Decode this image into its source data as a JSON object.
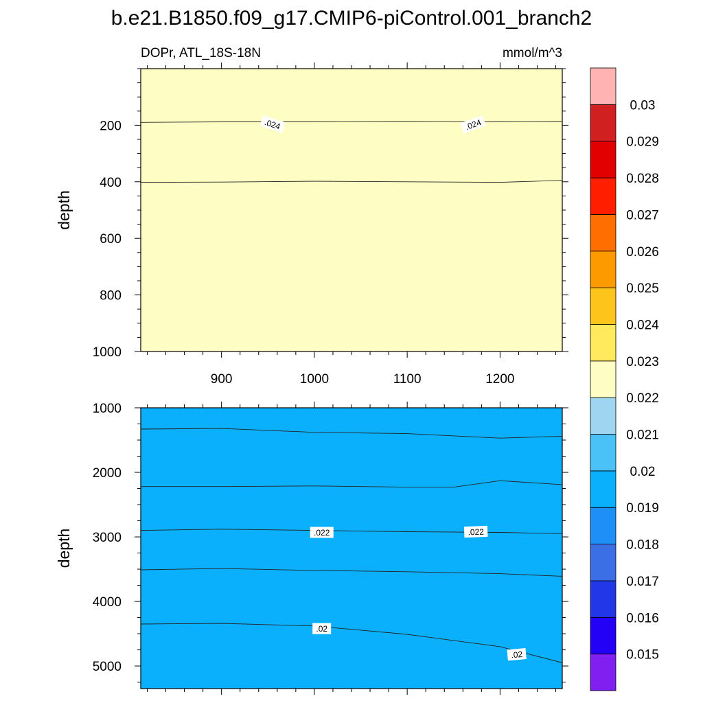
{
  "title": "b.e21.B1850.f09_g17.CMIP6-piControl.001_branch2",
  "chart_data": {
    "type": "contour",
    "left_label": "DOPr, ATL_18S-18N",
    "units": "mmol/m^3",
    "x_ticks": [
      900,
      1000,
      1100,
      1200
    ],
    "xlim": [
      813,
      1267
    ],
    "colorbar": {
      "levels": [
        "0.015",
        "0.016",
        "0.017",
        "0.018",
        "0.019",
        "0.02",
        "0.021",
        "0.022",
        "0.023",
        "0.024",
        "0.025",
        "0.026",
        "0.027",
        "0.028",
        "0.029",
        "0.03"
      ],
      "colors": [
        "#7f1ff0",
        "#2300f6",
        "#2238e8",
        "#3a6fe6",
        "#1e8ff7",
        "#0bb0fc",
        "#4ac2f7",
        "#9fd5ee",
        "#fefec4",
        "#feea5c",
        "#fdc41c",
        "#fd9a00",
        "#fe6e00",
        "#ff1e00",
        "#e30000",
        "#d02020",
        "#ffb3b3"
      ]
    },
    "panels": [
      {
        "ylabel": "depth",
        "y_ticks": [
          200,
          400,
          600,
          800,
          1000
        ],
        "ylim": [
          0,
          1000
        ],
        "bands": [
          {
            "bounds": [
              0,
              190
            ],
            "color": "#fdc41c"
          },
          {
            "bounds": [
              190,
              400
            ],
            "color": "#feea5c"
          },
          {
            "bounds": [
              400,
              1000
            ],
            "color": "#fefec4"
          }
        ],
        "contours": [
          {
            "x": [
              813,
              900,
              1000,
              1100,
              1200,
              1267
            ],
            "y": [
              190,
              188,
              188,
              187,
              188,
              187
            ]
          },
          {
            "x": [
              813,
              900,
              1000,
              1100,
              1200,
              1267
            ],
            "y": [
              402,
              401,
              398,
              400,
              402,
              395
            ]
          }
        ],
        "contour_labels": [
          {
            "text": ".024",
            "x": 955,
            "y": 196,
            "angle": 18
          },
          {
            "text": ".024",
            "x": 1171,
            "y": 197,
            "angle": -20
          }
        ]
      },
      {
        "ylabel": "depth",
        "y_ticks": [
          1000,
          2000,
          3000,
          4000,
          5000
        ],
        "ylim": [
          1000,
          5350
        ],
        "bands": [
          {
            "bounds": [
              1000,
              1320
            ],
            "color": "#fefec4"
          },
          {
            "bounds": [
              1320,
              2220
            ],
            "color": "#feea5c"
          },
          {
            "bounds": [
              2220,
              2900
            ],
            "color": "#fefec4"
          },
          {
            "bounds": [
              2900,
              3500
            ],
            "color": "#9fd5ee"
          },
          {
            "bounds": [
              3500,
              4350
            ],
            "color": "#4ac2f7"
          },
          {
            "bounds": [
              4350,
              5350
            ],
            "color": "#0bb0fc"
          }
        ],
        "contours": [
          {
            "x": [
              813,
              900,
              1000,
              1100,
              1200,
              1267
            ],
            "y": [
              1330,
              1320,
              1380,
              1400,
              1470,
              1440
            ]
          },
          {
            "x": [
              813,
              900,
              1000,
              1100,
              1150,
              1200,
              1267
            ],
            "y": [
              2220,
              2220,
              2210,
              2230,
              2230,
              2130,
              2190
            ]
          },
          {
            "x": [
              813,
              900,
              1000,
              1100,
              1200,
              1267
            ],
            "y": [
              2900,
              2880,
              2900,
              2920,
              2930,
              2950
            ]
          },
          {
            "x": [
              813,
              900,
              1000,
              1100,
              1200,
              1267
            ],
            "y": [
              3510,
              3490,
              3520,
              3540,
              3570,
              3610
            ]
          },
          {
            "x": [
              813,
              900,
              1000,
              1100,
              1200,
              1267
            ],
            "y": [
              4350,
              4340,
              4380,
              4510,
              4700,
              4950
            ]
          }
        ],
        "contour_labels": [
          {
            "text": ".022",
            "x": 1008,
            "y": 2930,
            "angle": 0
          },
          {
            "text": ".022",
            "x": 1174,
            "y": 2920,
            "angle": -2
          },
          {
            "text": ".02",
            "x": 1008,
            "y": 4420,
            "angle": 0
          },
          {
            "text": ".02",
            "x": 1218,
            "y": 4820,
            "angle": -5
          }
        ]
      }
    ]
  }
}
